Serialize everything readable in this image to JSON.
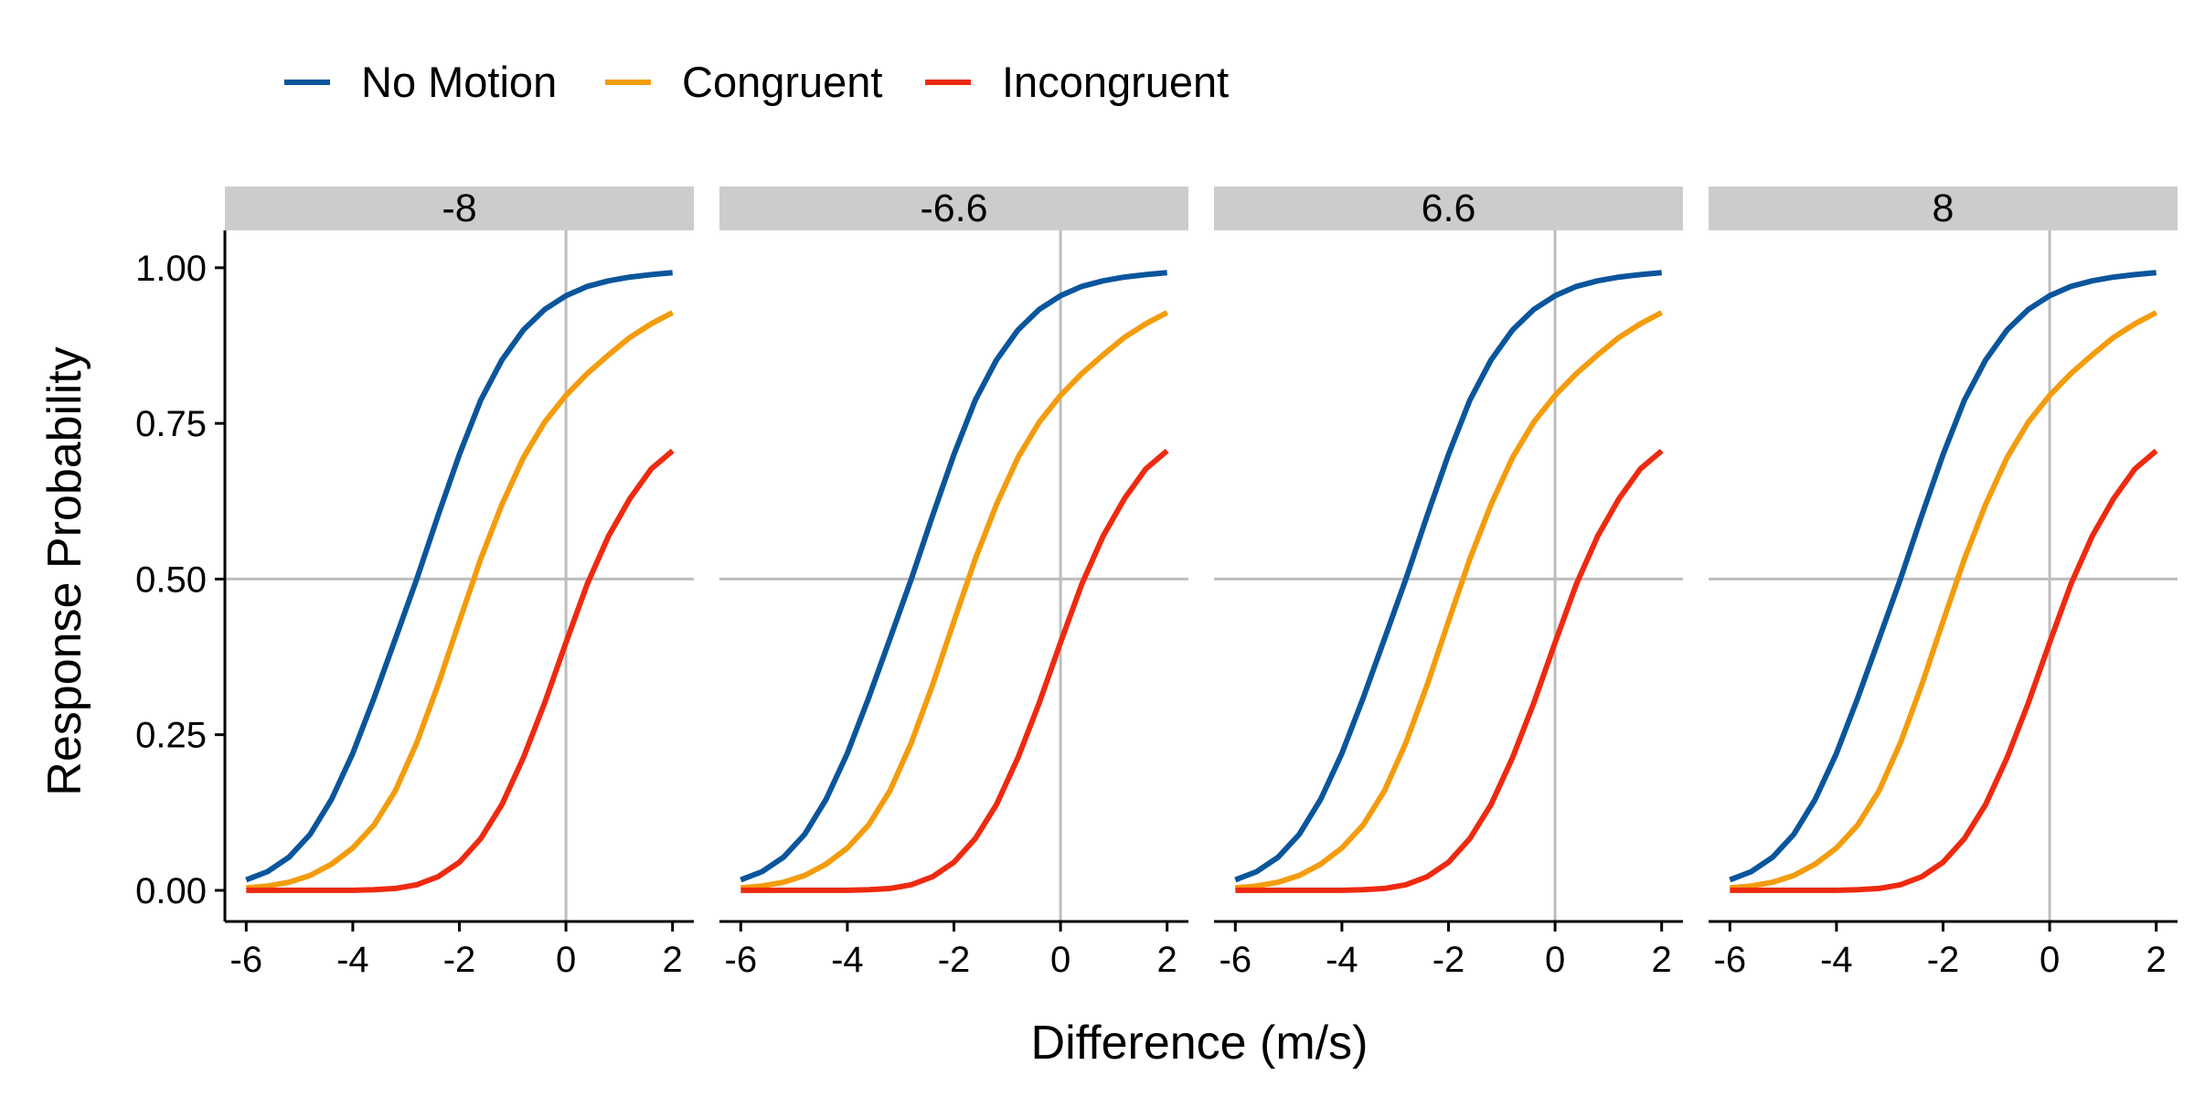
{
  "chart_data": {
    "type": "line",
    "xlabel": "Difference (m/s)",
    "ylabel": "Response Probability",
    "xlim": [
      -6.4,
      2.4
    ],
    "ylim": [
      -0.05,
      1.06
    ],
    "x_ticks": [
      -6,
      -4,
      -2,
      0,
      2
    ],
    "x_tick_labels": [
      "-6",
      "-4",
      "-2",
      "0",
      "2"
    ],
    "y_ticks": [
      0,
      0.25,
      0.5,
      0.75,
      1
    ],
    "y_tick_labels": [
      "0.00",
      "0.25",
      "0.50",
      "0.75",
      "1.00"
    ],
    "reference_lines": {
      "x": 0,
      "y": 0.5,
      "color": "#bdbdbd"
    },
    "grid": false,
    "legend_position": "top-left",
    "x": [
      -6,
      -5.6,
      -5.2,
      -4.8,
      -4.4,
      -4.0,
      -3.6,
      -3.2,
      -2.8,
      -2.4,
      -2.0,
      -1.6,
      -1.2,
      -0.8,
      -0.4,
      0.0,
      0.4,
      0.8,
      1.2,
      1.6,
      2.0
    ],
    "series": [
      {
        "name": "No Motion",
        "color": "#0a559c",
        "values": [
          0.017,
          0.03,
          0.053,
          0.09,
          0.146,
          0.22,
          0.309,
          0.404,
          0.5,
          0.602,
          0.7,
          0.787,
          0.852,
          0.9,
          0.933,
          0.955,
          0.97,
          0.979,
          0.985,
          0.989,
          0.992
        ]
      },
      {
        "name": "Congruent",
        "color": "#f39c0d",
        "values": [
          0.004,
          0.007,
          0.013,
          0.024,
          0.042,
          0.068,
          0.105,
          0.16,
          0.237,
          0.33,
          0.432,
          0.532,
          0.62,
          0.695,
          0.752,
          0.795,
          0.83,
          0.86,
          0.888,
          0.91,
          0.928
        ]
      },
      {
        "name": "Incongruent",
        "color": "#ee2a10",
        "values": [
          0.0,
          0.0,
          0.0,
          0.0,
          0.0,
          0.0,
          0.001,
          0.003,
          0.009,
          0.022,
          0.045,
          0.083,
          0.138,
          0.213,
          0.301,
          0.398,
          0.492,
          0.569,
          0.629,
          0.677,
          0.706
        ]
      }
    ],
    "facets": [
      {
        "label": "-8"
      },
      {
        "label": "-6.6"
      },
      {
        "label": "6.6"
      },
      {
        "label": "8"
      }
    ]
  }
}
